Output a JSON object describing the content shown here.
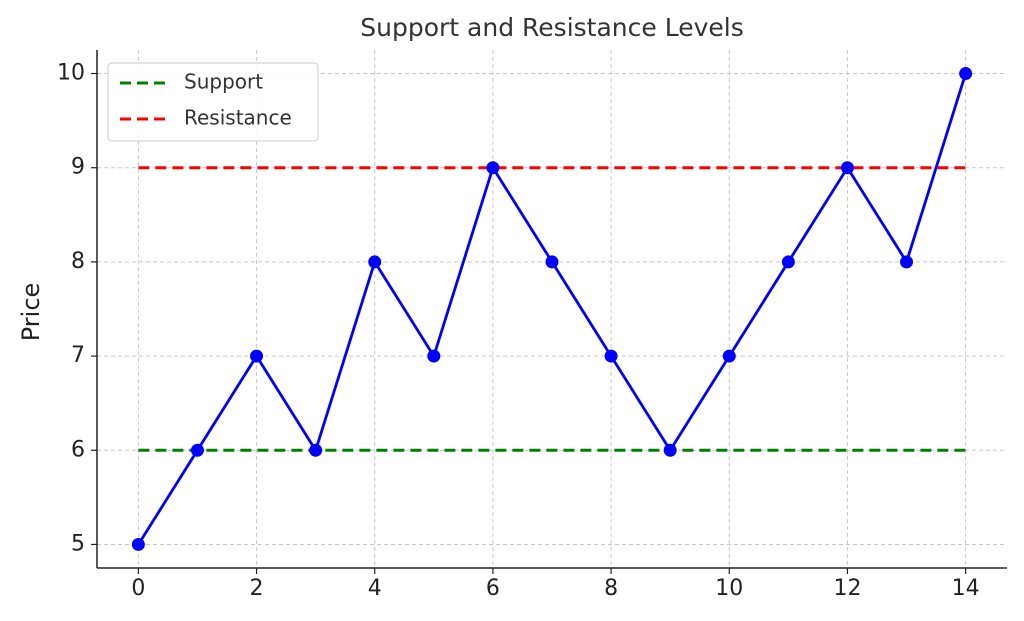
{
  "chart_data": {
    "type": "line",
    "title": "Support and Resistance Levels",
    "y_label": "Price",
    "x": [
      0,
      1,
      2,
      3,
      4,
      5,
      6,
      7,
      8,
      9,
      10,
      11,
      12,
      13,
      14
    ],
    "values": [
      5,
      6,
      7,
      6,
      8,
      7,
      9,
      8,
      7,
      6,
      7,
      8,
      9,
      8,
      10
    ],
    "color": "#0000ff",
    "hlines": [
      {
        "name": "Support",
        "value": 6,
        "color": "#008000",
        "dashed": true
      },
      {
        "name": "Resistance",
        "value": 9,
        "color": "#ff0000",
        "dashed": true
      }
    ],
    "xlim": [
      -0.7,
      14.7
    ],
    "ylim": [
      4.75,
      10.25
    ],
    "xticks": [
      0,
      2,
      4,
      6,
      8,
      10,
      12,
      14
    ],
    "yticks": [
      5,
      6,
      7,
      8,
      9,
      10
    ],
    "grid": true,
    "legend": "upper left"
  }
}
